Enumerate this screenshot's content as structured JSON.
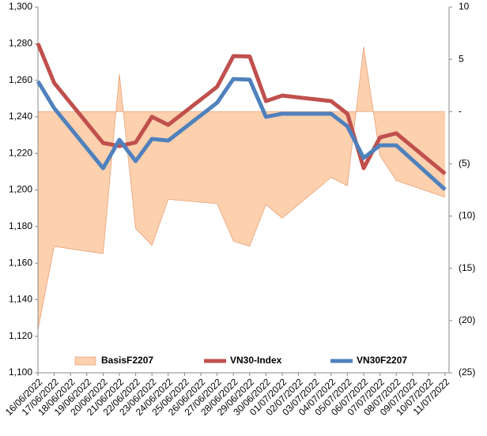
{
  "chart_data": {
    "type": "line",
    "x": [
      "16/06/2022",
      "17/06/2022",
      "20/06/2022",
      "21/06/2022",
      "22/06/2022",
      "23/06/2022",
      "24/06/2022",
      "27/06/2022",
      "28/06/2022",
      "29/06/2022",
      "30/06/2022",
      "01/07/2022",
      "04/07/2022",
      "05/07/2022",
      "06/07/2022",
      "07/07/2022",
      "08/07/2022",
      "11/07/2022"
    ],
    "xlim": [
      "16/06/2022",
      "11/07/2022"
    ],
    "xticks": [
      "16/06/2022",
      "17/06/2022",
      "18/06/2022",
      "19/06/2022",
      "20/06/2022",
      "21/06/2022",
      "22/06/2022",
      "23/06/2022",
      "24/06/2022",
      "25/06/2022",
      "26/06/2022",
      "27/06/2022",
      "28/06/2022",
      "29/06/2022",
      "30/06/2022",
      "01/07/2022",
      "02/07/2022",
      "03/07/2022",
      "04/07/2022",
      "05/07/2022",
      "06/07/2022",
      "07/07/2022",
      "08/07/2022",
      "09/07/2022",
      "10/07/2022",
      "11/07/2022"
    ],
    "ylim": [
      1100,
      1300
    ],
    "yticks": [
      {
        "value": 1100,
        "label": "1,100"
      },
      {
        "value": 1120,
        "label": "1,120"
      },
      {
        "value": 1140,
        "label": "1,140"
      },
      {
        "value": 1160,
        "label": "1,160"
      },
      {
        "value": 1180,
        "label": "1,180"
      },
      {
        "value": 1200,
        "label": "1,200"
      },
      {
        "value": 1220,
        "label": "1,220"
      },
      {
        "value": 1240,
        "label": "1,240"
      },
      {
        "value": 1260,
        "label": "1,260"
      },
      {
        "value": 1280,
        "label": "1,280"
      },
      {
        "value": 1300,
        "label": "1,300"
      }
    ],
    "y2lim": [
      -25,
      10
    ],
    "y2ticks": [
      10,
      5,
      {
        "value": 0,
        "label": "-"
      },
      {
        "value": -5,
        "label": "(5)"
      },
      {
        "value": -10,
        "label": "(10)"
      },
      {
        "value": -15,
        "label": "(15)"
      },
      {
        "value": -20,
        "label": "(20)"
      },
      {
        "value": -25,
        "label": "(25)"
      }
    ],
    "series": [
      {
        "name": "BasisF2207",
        "type": "area",
        "axis": "y2",
        "color": "#fdd0ae",
        "values": [
          -20.9,
          -12.9,
          -13.6,
          3.6,
          -11.2,
          -12.8,
          -8.4,
          -8.8,
          -12.4,
          -12.9,
          -8.9,
          -10.2,
          -6.3,
          -7.1,
          6.2,
          -4.2,
          -6.6,
          -8.2
        ]
      },
      {
        "name": "VN30-Index",
        "color": "#c0504d",
        "values": [
          1280.1,
          1258.5,
          1225.7,
          1224,
          1226,
          1240,
          1235.6,
          1256.4,
          1273.2,
          1273,
          1248.6,
          1251.6,
          1248.6,
          1241.7,
          1211.9,
          1228.7,
          1231,
          1208.9
        ]
      },
      {
        "name": "VN30F2207",
        "color": "#4f81bd",
        "values": [
          1259.4,
          1244.7,
          1211.9,
          1227.4,
          1215.8,
          1227.9,
          1227,
          1247.7,
          1260.7,
          1260.3,
          1240,
          1241.7,
          1241.7,
          1234.8,
          1217.5,
          1224.4,
          1224.4,
          1200.2
        ]
      }
    ]
  }
}
